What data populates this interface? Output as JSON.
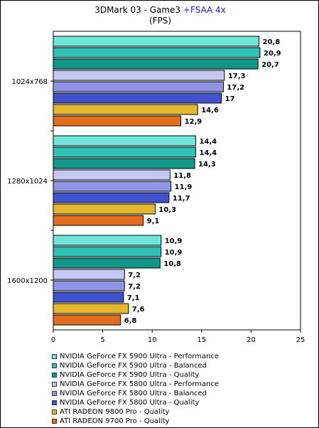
{
  "chart_data": {
    "type": "bar",
    "orientation": "horizontal",
    "title": "3DMark 03 - Game3",
    "title_accent": "+FSAA 4x",
    "subtitle": "(FPS)",
    "categories": [
      "1024x768",
      "1280x1024",
      "1600x1200"
    ],
    "series": [
      {
        "name": "NVIDIA GeForce FX 5900 Ultra - Performance",
        "color": "#6fe6da",
        "values": [
          20.8,
          14.4,
          10.9
        ],
        "labels": [
          "20,8",
          "14,4",
          "10,9"
        ]
      },
      {
        "name": "NVIDIA GeForce FX 5900 Ultra - Balanced",
        "color": "#2fc2b3",
        "values": [
          20.9,
          14.4,
          10.9
        ],
        "labels": [
          "20,9",
          "14,4",
          "10,9"
        ]
      },
      {
        "name": "NVIDIA GeForce FX 5900 Ultra - Quality",
        "color": "#11968a",
        "values": [
          20.7,
          14.3,
          10.8
        ],
        "labels": [
          "20,7",
          "14,3",
          "10,8"
        ]
      },
      {
        "name": "NVIDIA GeForce FX 5800 Ultra - Performance",
        "color": "#c5c8f3",
        "values": [
          17.3,
          11.8,
          7.2
        ],
        "labels": [
          "17,3",
          "11,8",
          "7,2"
        ]
      },
      {
        "name": "NVIDIA GeForce FX 5800 Ultra - Balanced",
        "color": "#8e95e6",
        "values": [
          17.2,
          11.9,
          7.2
        ],
        "labels": [
          "17,2",
          "11,9",
          "7,2"
        ]
      },
      {
        "name": "NVIDIA GeForce FX 5800 Ultra - Quality",
        "color": "#4252cf",
        "values": [
          17,
          11.7,
          7.1
        ],
        "labels": [
          "17",
          "11,7",
          "7,1"
        ]
      },
      {
        "name": "ATI RADEON 9800 Pro - Quality",
        "color": "#e6b72c",
        "values": [
          14.6,
          10.3,
          7.6
        ],
        "labels": [
          "14,6",
          "10,3",
          "7,6"
        ]
      },
      {
        "name": "ATI RADEON 9700 Pro - Quality",
        "color": "#e26d1c",
        "values": [
          12.9,
          9.1,
          6.8
        ],
        "labels": [
          "12,9",
          "9,1",
          "6,8"
        ]
      }
    ],
    "xlim": [
      0,
      25
    ],
    "xticks": [
      0,
      5,
      10,
      15,
      20,
      25
    ],
    "grid": false,
    "legend_position": "bottom"
  }
}
